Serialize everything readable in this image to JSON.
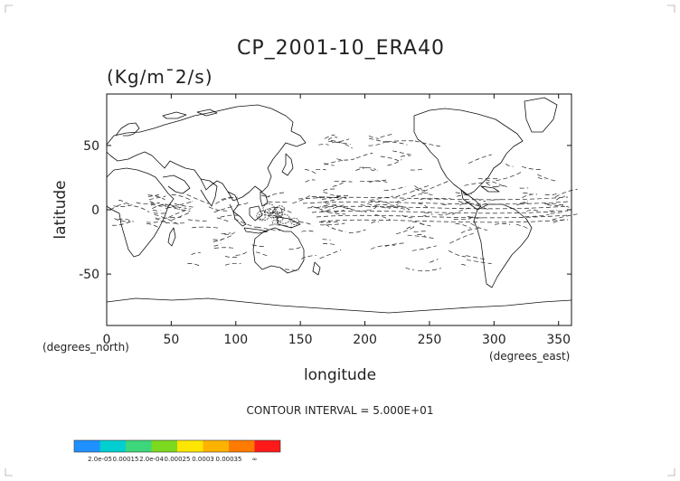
{
  "chart_data": {
    "type": "map-contour",
    "title": "CP_2001-10_ERA40",
    "units": "(Kg/m¯2/s)",
    "xlabel": "longitude",
    "ylabel": "latitude",
    "x_axis_note": "(degrees_east)",
    "y_axis_note": "(degrees_north)",
    "xlim": [
      0,
      360
    ],
    "ylim": [
      -90,
      90
    ],
    "x_ticks": [
      0,
      50,
      100,
      150,
      200,
      250,
      300,
      350
    ],
    "y_ticks": [
      50,
      0,
      -50
    ],
    "grid": false,
    "contour_interval_text": "CONTOUR INTERVAL = 5.000E+01",
    "colorbar": {
      "colors": [
        "#1e90ff",
        "#00ced1",
        "#3cd77a",
        "#7dd820",
        "#ffe600",
        "#ffb300",
        "#ff7a00",
        "#ff1a1a"
      ],
      "labels": [
        "2.0e-05",
        "0.00015",
        "2.0e-04",
        "0.00025",
        "0.0003",
        "0.00035",
        "∞"
      ]
    }
  }
}
